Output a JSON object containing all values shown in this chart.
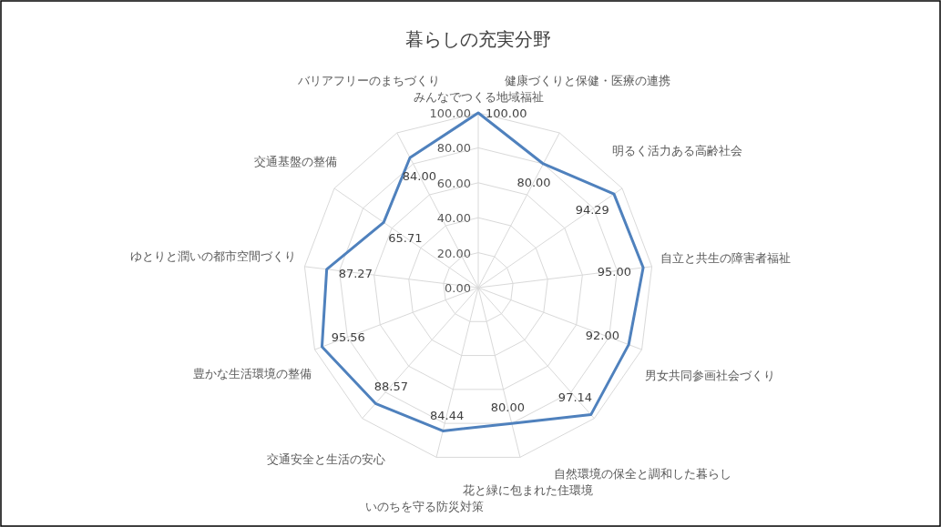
{
  "chart_data": {
    "type": "radar",
    "title": "暮らしの充実分野",
    "categories": [
      "みんなでつくる地域福祉",
      "健康づくりと保健・医療の連携",
      "明るく活力ある高齢社会",
      "自立と共生の障害者福祉",
      "男女共同参画社会づくり",
      "自然環境の保全と調和した暮らし",
      "花と緑に包まれた住環境",
      "いのちを守る防災対策",
      "交通安全と生活の安心",
      "豊かな生活環境の整備",
      "ゆとりと潤いの都市空間づくり",
      "交通基盤の整備",
      "バリアフリーのまちづくり"
    ],
    "series": [
      {
        "color": "#4f81bd",
        "values": [
          100,
          80,
          94.29,
          95,
          92,
          97.14,
          80,
          84.44,
          88.57,
          95.56,
          87.27,
          65.71,
          84
        ],
        "value_labels": [
          "100.00",
          "80.00",
          "94.29",
          "95.00",
          "92.00",
          "97.14",
          "80.00",
          "84.44",
          "88.57",
          "95.56",
          "87.27",
          "65.71",
          "84.00"
        ]
      }
    ],
    "ylim": [
      0,
      100
    ],
    "yticks": [
      {
        "value": 0,
        "label": "0.00"
      },
      {
        "value": 20,
        "label": "20.00"
      },
      {
        "value": 40,
        "label": "40.00"
      },
      {
        "value": 60,
        "label": "60.00"
      },
      {
        "value": 80,
        "label": "80.00"
      },
      {
        "value": 100,
        "label": "100.00"
      }
    ],
    "grid": true,
    "marker": "none",
    "line_style": "solid"
  }
}
